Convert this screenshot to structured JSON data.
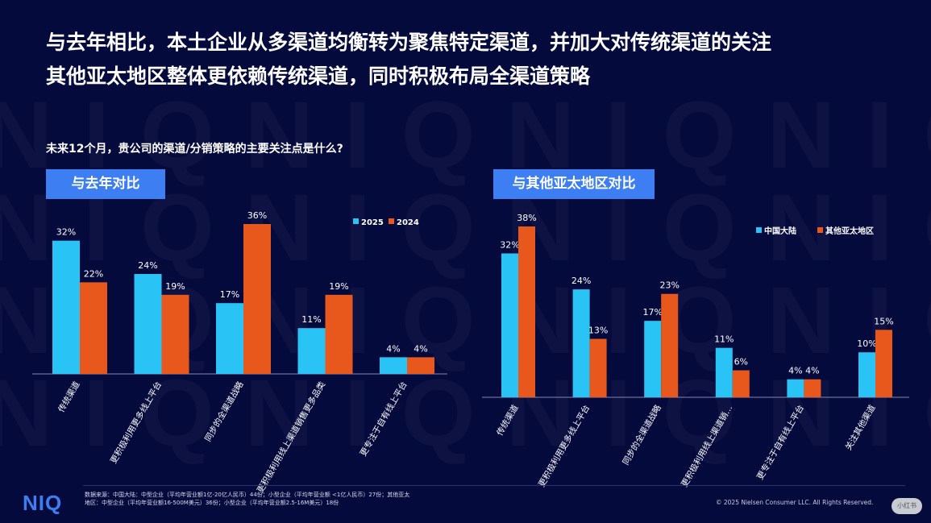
{
  "header": {
    "title_line1": "与去年相比，本土企业从多渠道均衡转为聚焦特定渠道，并加大对传统渠道的关注",
    "title_line2": "其他亚太地区整体更依赖传统渠道，同时积极布局全渠道策略"
  },
  "question": "未来12个月，贵公司的渠道/分销策略的主要关注点是什么?",
  "watermark_text": "NIQ",
  "colors": {
    "background": "#050a3c",
    "series_a": "#29c3f5",
    "series_b": "#e8571b",
    "tag": "#3d7ff2"
  },
  "chart_data": [
    {
      "type": "bar",
      "panel_title": "与去年对比",
      "categories": [
        "传统渠道",
        "更积极利用更多线上平台",
        "同步的全渠道战略",
        "更积极利用线上渠道销售更多品类",
        "更专注于自有线上平台"
      ],
      "series": [
        {
          "name": "2025",
          "values": [
            32,
            24,
            17,
            11,
            4
          ]
        },
        {
          "name": "2024",
          "values": [
            22,
            19,
            36,
            19,
            4
          ]
        }
      ],
      "value_suffix": "%",
      "ylim": [
        0,
        36
      ],
      "legend": "top-right"
    },
    {
      "type": "bar",
      "panel_title": "与其他亚太地区对比",
      "categories": [
        "传统渠道",
        "更积极利用更多线上平台",
        "同步的全渠道战略",
        "更积极利用线上渠道销…",
        "更专注于自有线上平台",
        "关注其他渠道"
      ],
      "series": [
        {
          "name": "中国大陆",
          "values": [
            32,
            24,
            17,
            11,
            4,
            10
          ]
        },
        {
          "name": "其他亚太地区",
          "values": [
            38,
            13,
            23,
            6,
            4,
            15
          ]
        }
      ],
      "value_suffix": "%",
      "ylim": [
        0,
        38
      ],
      "legend": "top-right"
    }
  ],
  "footer": {
    "logo": "NIQ",
    "source": "数据来源：中国大陆：中型企业（平均年营业额1亿-20亿人民币）44份；小型企业（平均年营业额 <1亿人民币）27份；其他亚太地区：中型企业（平均年营业额16-500M美元）36份；小型企业（平均年营业额2.5-16M美元）18份",
    "copyright": "© 2025 Nielsen Consumer LLC. All Rights Reserved.",
    "badge": "小红书"
  }
}
